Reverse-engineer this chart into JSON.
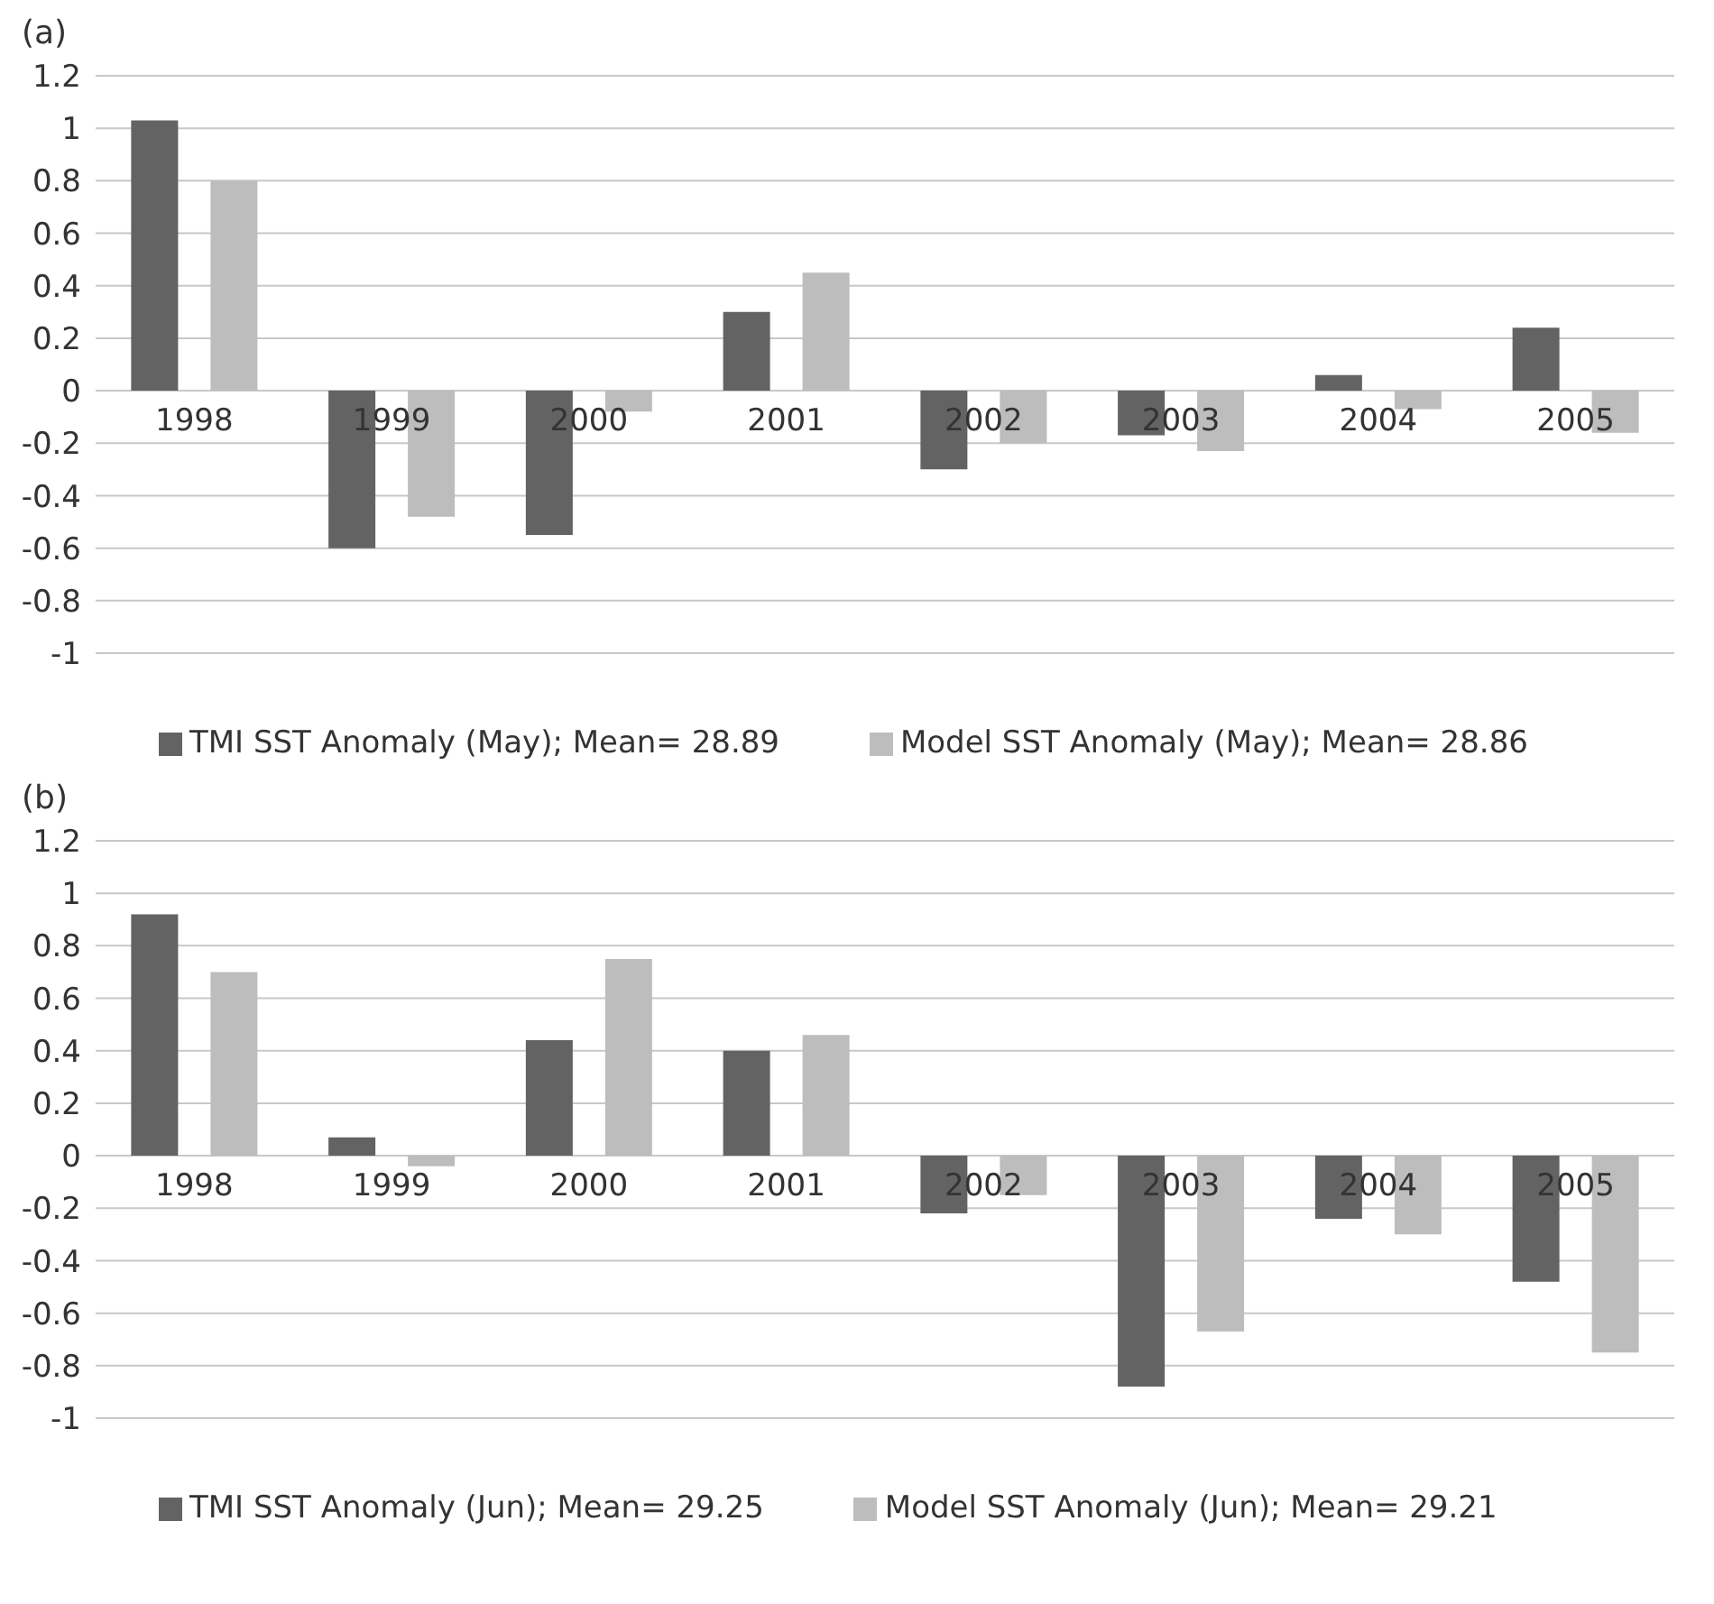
{
  "chart_data": [
    {
      "type": "bar",
      "title": "(a)",
      "categories": [
        "1998",
        "1999",
        "2000",
        "2001",
        "2002",
        "2003",
        "2004",
        "2005"
      ],
      "series": [
        {
          "name": "TMI SST Anomaly (May); Mean= 28.89",
          "color": "#636363",
          "values": [
            1.03,
            -0.6,
            -0.55,
            0.3,
            -0.3,
            -0.17,
            0.06,
            0.24
          ]
        },
        {
          "name": "Model SST Anomaly (May); Mean= 28.86",
          "color": "#bdbdbd",
          "values": [
            0.8,
            -0.48,
            -0.08,
            0.45,
            -0.2,
            -0.23,
            -0.07,
            -0.16
          ]
        }
      ],
      "ylim": [
        -1,
        1.2
      ],
      "yticks": [
        -1,
        -0.8,
        -0.6,
        -0.4,
        -0.2,
        0,
        0.2,
        0.4,
        0.6,
        0.8,
        1,
        1.2
      ],
      "grid": "y",
      "legend": "bottom"
    },
    {
      "type": "bar",
      "title": "(b)",
      "categories": [
        "1998",
        "1999",
        "2000",
        "2001",
        "2002",
        "2003",
        "2004",
        "2005"
      ],
      "series": [
        {
          "name": "TMI SST Anomaly (Jun); Mean= 29.25",
          "color": "#636363",
          "values": [
            0.92,
            0.07,
            0.44,
            0.4,
            -0.22,
            -0.88,
            -0.24,
            -0.48
          ]
        },
        {
          "name": "Model SST Anomaly (Jun); Mean= 29.21",
          "color": "#bdbdbd",
          "values": [
            0.7,
            -0.04,
            0.75,
            0.46,
            -0.15,
            -0.67,
            -0.3,
            -0.75
          ]
        }
      ],
      "ylim": [
        -1,
        1.2
      ],
      "yticks": [
        -1,
        -0.8,
        -0.6,
        -0.4,
        -0.2,
        0,
        0.2,
        0.4,
        0.6,
        0.8,
        1,
        1.2
      ],
      "grid": "y",
      "legend": "bottom"
    }
  ]
}
